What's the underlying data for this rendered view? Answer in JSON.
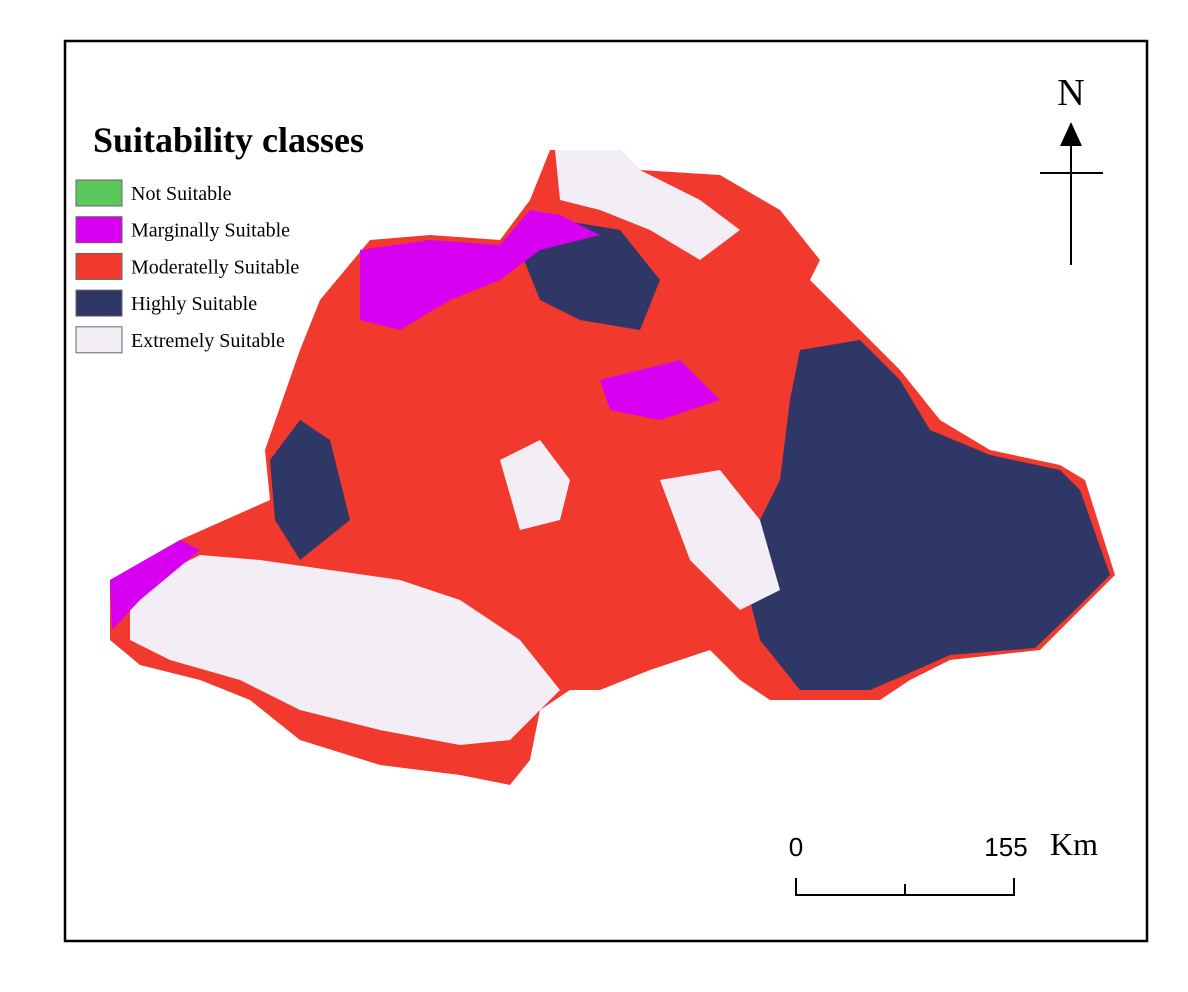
{
  "legend": {
    "title": "Suitability classes",
    "items": [
      {
        "label": "Not Suitable",
        "color": "#5cc85c"
      },
      {
        "label": "Marginally Suitable",
        "color": "#d700f0"
      },
      {
        "label": "Moderatelly Suitable",
        "color": "#f2392d"
      },
      {
        "label": "Highly Suitable",
        "color": "#2e3766"
      },
      {
        "label": "Extremely Suitable",
        "color": "#f3eef6"
      }
    ]
  },
  "north_arrow": {
    "label": "N"
  },
  "scale_bar": {
    "start": 0,
    "end": 155,
    "unit": "Km"
  }
}
